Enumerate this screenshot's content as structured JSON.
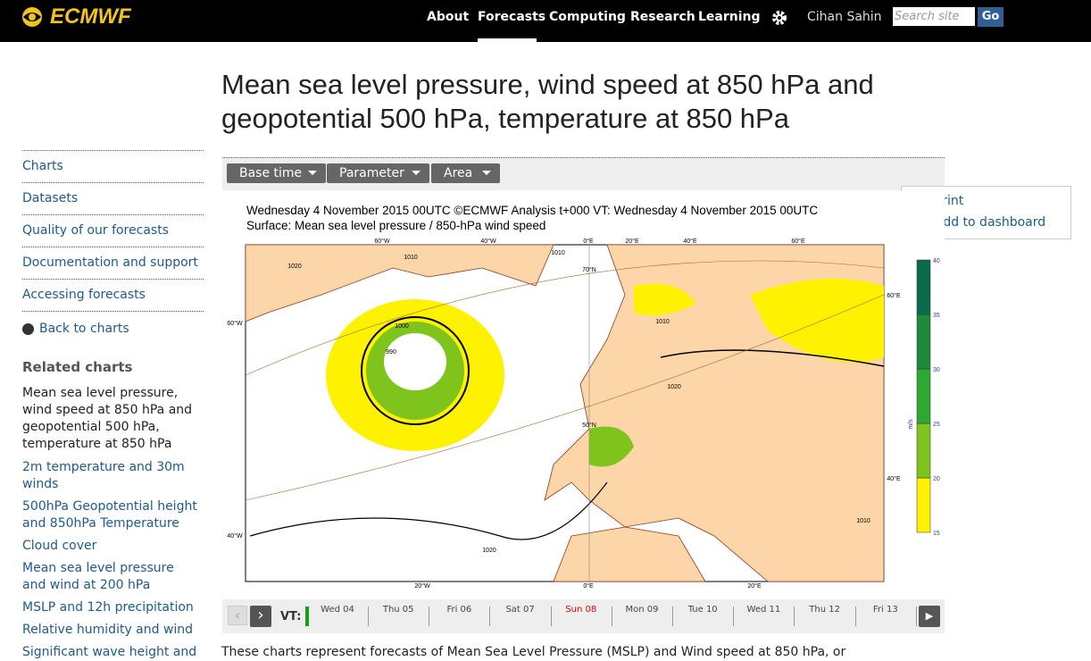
{
  "header": {
    "logo": "ECMWF",
    "nav": [
      "About",
      "Forecasts",
      "Computing",
      "Research",
      "Learning"
    ],
    "active_nav": 1,
    "user": "Cihan Sahin",
    "search_placeholder": "Search site",
    "search_button": "Go"
  },
  "page": {
    "title": "Mean sea level pressure, wind speed at 850 hPa and geopotential 500 hPa, temperature at 850 hPa",
    "intro": "These charts represent forecasts of Mean Sea Level Pressure (MSLP) and Wind speed at 850 hPa, or"
  },
  "sidebar": {
    "menu": [
      "Charts",
      "Datasets",
      "Quality of our forecasts",
      "Documentation and support",
      "Accessing forecasts"
    ],
    "back": "Back to charts",
    "related_heading": "Related charts",
    "current": "Mean sea level pressure, wind speed at 850 hPa and geopotential 500 hPa, temperature at 850 hPa",
    "related": [
      "2m temperature and 30m winds",
      "500hPa Geopotential height and 850hPa Temperature",
      "Cloud cover",
      "Mean sea level pressure and wind at 200 hPa",
      "MSLP and 12h precipitation",
      "Relative humidity and wind",
      "Significant wave height and"
    ]
  },
  "toolbar": [
    "Base time",
    "Parameter",
    "Area"
  ],
  "actions": [
    "Print",
    "Add to dashboard"
  ],
  "map": {
    "line1": "Wednesday 4 November 2015 00UTC ©ECMWF Analysis t+000 VT: Wednesday 4 November 2015 00UTC",
    "line2": "Surface: Mean sea level pressure / 850-hPa wind speed",
    "lon_top": [
      "60°W",
      "40°W",
      "0°E",
      "20°E",
      "40°E",
      "60°E"
    ],
    "lon_bottom": [
      "20°W",
      "0°E",
      "20°E"
    ],
    "lat_left": [
      "60°W",
      "40°W"
    ],
    "lat_right": [
      "60°E",
      "40°E"
    ],
    "inner": [
      "70°N",
      "50°N"
    ],
    "isobars": [
      "1020",
      "1010",
      "1010",
      "1000",
      "990",
      "1010",
      "1020",
      "1020",
      "1010"
    ],
    "colorbar": {
      "ticks": [
        15,
        20,
        25,
        30,
        35,
        40
      ],
      "unit": "m/s"
    }
  },
  "timeline": {
    "label": "VT:",
    "days": [
      "Wed 04",
      "Thu 05",
      "Fri 06",
      "Sat 07",
      "Sun 08",
      "Mon 09",
      "Tue 10",
      "Wed 11",
      "Thu 12",
      "Fri 13"
    ],
    "highlight": 4
  }
}
